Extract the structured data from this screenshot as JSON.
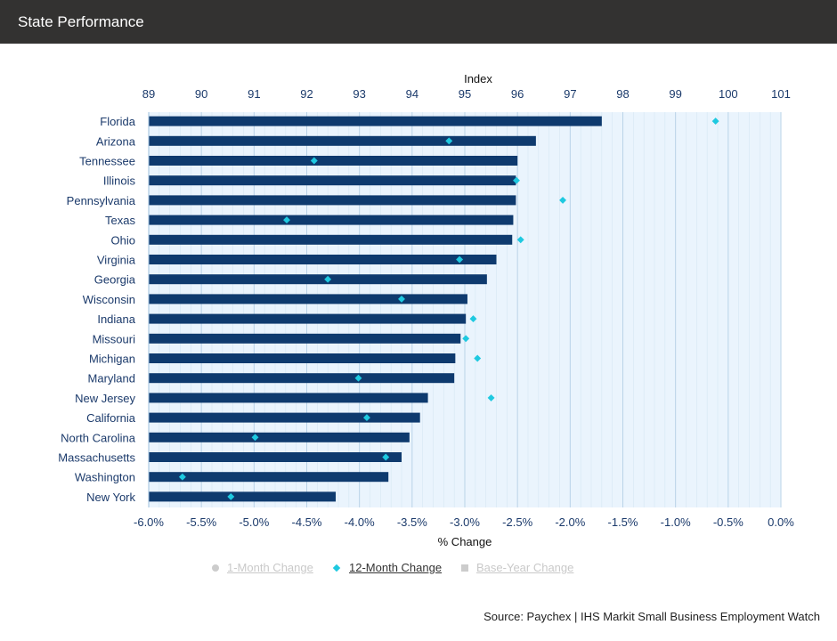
{
  "header": {
    "title": "State Performance"
  },
  "legend": {
    "items": [
      {
        "label": "1-Month Change",
        "symbol": "circle",
        "active": false
      },
      {
        "label": "12-Month Change",
        "symbol": "diamond",
        "active": true
      },
      {
        "label": "Base-Year Change",
        "symbol": "square",
        "active": false
      }
    ]
  },
  "source": "Source: Paychex | IHS Markit Small Business Employment Watch",
  "colors": {
    "bar": "#0e3a6e",
    "marker": "#1ec9e0",
    "plot_background": "#eaf4fd",
    "gridline": "#c5ddee",
    "axis_text": "#1b3a6b"
  },
  "chart_data": {
    "type": "bar",
    "orientation": "horizontal",
    "categories": [
      "Florida",
      "Arizona",
      "Tennessee",
      "Illinois",
      "Pennsylvania",
      "Texas",
      "Ohio",
      "Virginia",
      "Georgia",
      "Wisconsin",
      "Indiana",
      "Missouri",
      "Michigan",
      "Maryland",
      "New Jersey",
      "California",
      "North Carolina",
      "Massachusetts",
      "Washington",
      "New York"
    ],
    "series": [
      {
        "name": "Index",
        "kind": "bar",
        "axis": "top",
        "values": [
          97.6,
          96.35,
          96.0,
          95.97,
          95.97,
          95.92,
          95.9,
          95.6,
          95.42,
          95.05,
          95.02,
          94.92,
          94.82,
          94.8,
          94.3,
          94.15,
          93.95,
          93.8,
          93.55,
          92.55
        ]
      },
      {
        "name": "12-Month Change",
        "kind": "marker",
        "axis": "bottom",
        "values": [
          -0.62,
          -3.15,
          -4.43,
          -2.51,
          -2.07,
          -4.69,
          -2.47,
          -3.05,
          -4.3,
          -3.6,
          -2.92,
          -2.99,
          -2.88,
          -4.01,
          -2.75,
          -3.93,
          -4.99,
          -3.75,
          -5.68,
          -5.22
        ]
      }
    ],
    "x_top": {
      "label": "Index",
      "min": 89,
      "max": 101,
      "ticks": [
        89,
        90,
        91,
        92,
        93,
        94,
        95,
        96,
        97,
        98,
        99,
        100,
        101
      ]
    },
    "x_bottom": {
      "label": "% Change",
      "min": -6.0,
      "max": 0.0,
      "ticks": [
        -6.0,
        -5.5,
        -5.0,
        -4.5,
        -4.0,
        -3.5,
        -3.0,
        -2.5,
        -2.0,
        -1.5,
        -1.0,
        -0.5,
        0.0
      ],
      "tick_labels": [
        "-6.0%",
        "-5.5%",
        "-5.0%",
        "-4.5%",
        "-4.0%",
        "-3.5%",
        "-3.0%",
        "-2.5%",
        "-2.0%",
        "-1.5%",
        "-1.0%",
        "-0.5%",
        "0.0%"
      ]
    },
    "grid": true
  }
}
